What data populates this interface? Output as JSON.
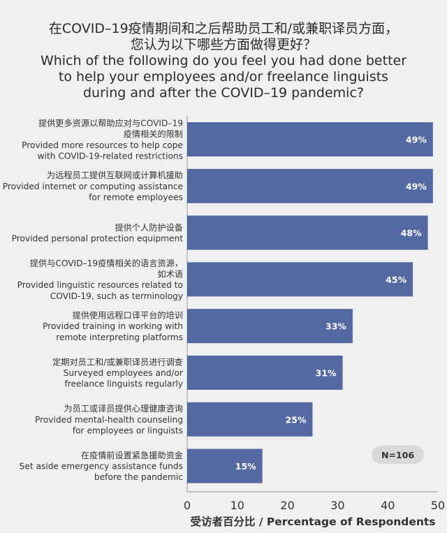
{
  "title": {
    "zh_line1": "在COVID–19疫情期间和之后帮助员工和/或兼职译员方面，",
    "zh_line2": "您认为以下哪些方面做得更好？",
    "en_line1": "Which of the following do you feel you had done better",
    "en_line2": "to help your employees and/or freelance linguists",
    "en_line3": "during and after the COVID–19 pandemic?"
  },
  "chart_data": {
    "type": "bar",
    "orientation": "horizontal",
    "unit": "%",
    "categories": [
      [
        "提供更多资源以帮助应对与COVID–19",
        "疫情相关的限制",
        "Provided more resources to help cope",
        "with COVID-19-related restrictions"
      ],
      [
        "为远程员工提供互联网或计算机援助",
        "Provided internet or computing assistance",
        "for remote employees"
      ],
      [
        "提供个人防护设备",
        "Provided personal protection equipment"
      ],
      [
        "提供与COVID–19疫情相关的语言资源，",
        "如术语",
        "Provided linguistic resources related to",
        "COVID-19, such as terminology"
      ],
      [
        "提供使用远程口译平台的培训",
        "Provided training in working with",
        "remote interpreting platforms"
      ],
      [
        "定期对员工和/或兼职译员进行调查",
        "Surveyed employees and/or",
        "freelance linguists regularly"
      ],
      [
        "为员工或译员提供心理健康咨询",
        "Provided mental-health counseling",
        "for employees or linguists"
      ],
      [
        "在疫情前设置紧急援助资金",
        "Set aside emergency assistance funds",
        "before the pandemic"
      ]
    ],
    "values": [
      49,
      49,
      48,
      45,
      33,
      31,
      25,
      15
    ],
    "data_labels": [
      "49%",
      "49%",
      "48%",
      "45%",
      "33%",
      "31%",
      "25%",
      "15%"
    ],
    "xlim": [
      0,
      50
    ],
    "xticks": [
      0,
      10,
      20,
      30,
      40,
      50
    ],
    "xlabel": "受访者百分比 / Percentage of Respondents",
    "annotation": "N=106",
    "grid": false,
    "colors": {
      "bar": "#5468a2",
      "background": "#f0f0f0",
      "axis": "#999999",
      "annotation_bg": "#d9d9d9",
      "text": "#333333"
    }
  }
}
